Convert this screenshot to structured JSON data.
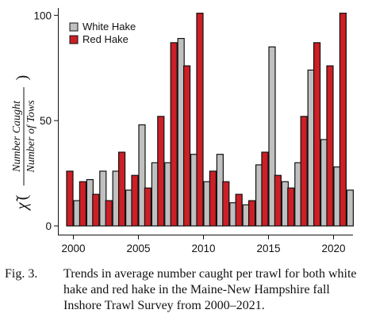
{
  "chart_data": {
    "type": "bar",
    "x": [
      2000,
      2001,
      2002,
      2003,
      2004,
      2005,
      2006,
      2007,
      2008,
      2009,
      2010,
      2011,
      2012,
      2013,
      2014,
      2015,
      2016,
      2017,
      2018,
      2019,
      2020,
      2021
    ],
    "series": [
      {
        "name": "White Hake",
        "color": "#c0c0c0",
        "values": [
          12,
          22,
          26,
          26,
          17,
          48,
          30,
          30,
          89,
          34,
          21,
          34,
          11,
          10,
          29,
          85,
          21,
          30,
          74,
          41,
          28,
          17
        ]
      },
      {
        "name": "Red Hake",
        "color": "#cc1f26",
        "values": [
          26,
          21,
          15,
          12,
          35,
          24,
          18,
          52,
          87,
          76,
          101,
          26,
          21,
          15,
          12,
          35,
          24,
          18,
          52,
          87,
          76,
          101
        ]
      }
    ],
    "xticks": [
      "2000",
      "2005",
      "2010",
      "2015",
      "2020"
    ],
    "yticks": [
      "0",
      "50",
      "100"
    ],
    "ylim": [
      0,
      102
    ],
    "legend_position": "top-left",
    "ylabel": {
      "symbol": "χ̃",
      "paren_open": "(",
      "paren_close": ")",
      "numerator": "Number Caught",
      "denominator": "Number of Tows"
    }
  },
  "caption": {
    "label": "Fig. 3.",
    "text": "Trends in average number caught per trawl for both white hake and red hake in the Maine-New Hampshire fall Inshore Trawl Survey from 2000–2021."
  }
}
